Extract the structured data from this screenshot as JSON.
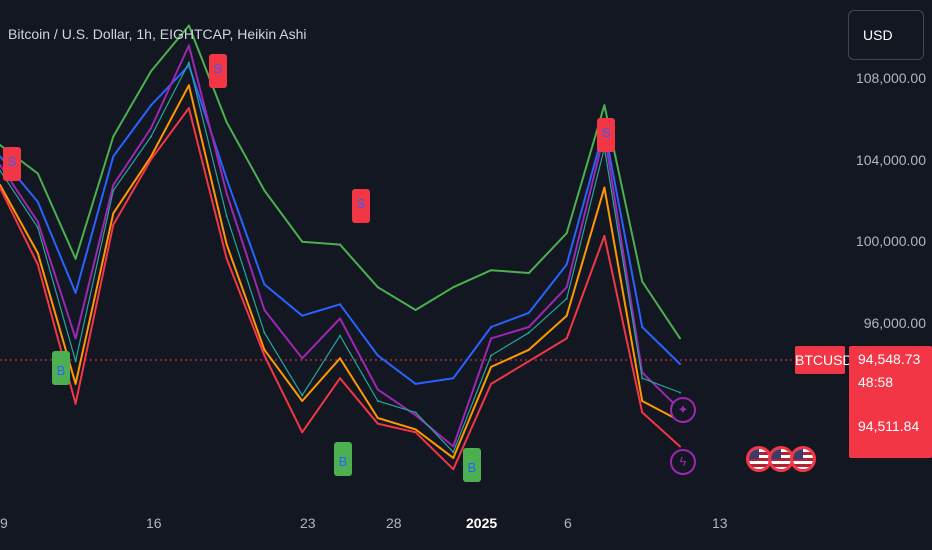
{
  "title": "Bitcoin / U.S. Dollar, 1h, EIGHTCAP, Heikin Ashi",
  "currency": "USD",
  "symbol_tag": "BTCUSD",
  "current_price": "94,548.73",
  "countdown": "48:58",
  "lower_price": "94,511.84",
  "signals": {
    "sell": "S",
    "buy": "B"
  },
  "icons": {
    "sparkle": "sparkle-icon",
    "lightning": "lightning-icon",
    "flag": "us-flag-icon"
  },
  "colors": {
    "background": "#131722",
    "green": "#4caf50",
    "blue": "#2962ff",
    "purple": "#9c27b0",
    "orange": "#ff9800",
    "red": "#f23645",
    "teal": "#26a69a"
  },
  "chart_data": {
    "type": "line",
    "title": "",
    "xlabel": "",
    "ylabel": "",
    "x_ticks": [
      "9",
      "16",
      "23",
      "28",
      "2025",
      "6",
      "13"
    ],
    "y_ticks": [
      "108,000.00",
      "104,000.00",
      "100,000.00",
      "96,000.00"
    ],
    "ylim": [
      88960,
      108300
    ],
    "x_positions": [
      "9",
      "12",
      "14",
      "16",
      "17",
      "18",
      "20",
      "22",
      "24",
      "26",
      "28",
      "30",
      "2025",
      "2",
      "4",
      "6",
      "8",
      "9",
      "10"
    ],
    "series": [
      {
        "values": [
          103200,
          102200,
          99200,
          103500,
          105800,
          107400,
          104000,
          101600,
          99800,
          99700,
          98200,
          97400,
          98200,
          98800,
          98700,
          100100,
          104600,
          98400,
          96400
        ]
      },
      {
        "values": [
          102800,
          101200,
          98000,
          102800,
          104600,
          106000,
          102000,
          98300,
          97200,
          97600,
          95800,
          94800,
          95000,
          96800,
          97300,
          99000,
          103800,
          96800,
          95500
        ]
      },
      {
        "values": [
          102500,
          100500,
          96400,
          101800,
          103800,
          106700,
          101500,
          97400,
          95700,
          97100,
          94600,
          93700,
          92600,
          96400,
          96800,
          98200,
          103600,
          95200,
          93900
        ]
      },
      {
        "values": [
          101800,
          99400,
          94800,
          100800,
          102800,
          105300,
          99700,
          96000,
          94200,
          95700,
          93600,
          93200,
          92200,
          95400,
          96000,
          97200,
          101700,
          94200,
          93500
        ]
      },
      {
        "values": [
          101700,
          99000,
          94100,
          100400,
          102700,
          104500,
          99200,
          95800,
          93100,
          95000,
          93400,
          93100,
          91800,
          94800,
          95600,
          96400,
          100000,
          93800,
          92600
        ]
      },
      {
        "values": [
          102300,
          100300,
          95600,
          101600,
          103500,
          106100,
          100700,
          96600,
          94400,
          96500,
          94200,
          93800,
          92400,
          95800,
          96600,
          97800,
          103100,
          95000,
          94500
        ]
      }
    ]
  }
}
